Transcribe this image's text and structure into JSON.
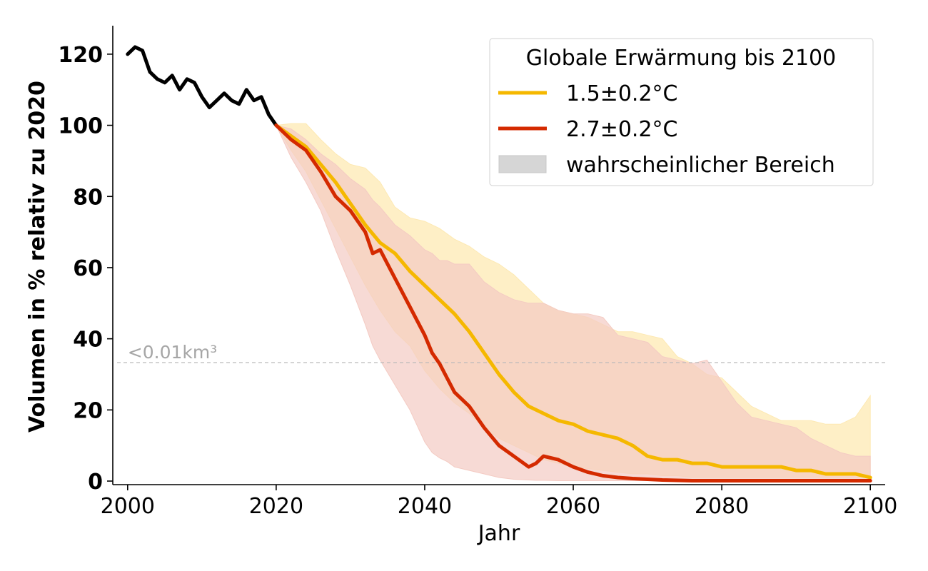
{
  "chart_data": {
    "type": "line",
    "xlabel": "Jahr",
    "ylabel": "Volumen in % relativ zu 2020",
    "xlim": [
      1998,
      2102
    ],
    "ylim": [
      -1,
      128
    ],
    "x_ticks": [
      2000,
      2020,
      2040,
      2060,
      2080,
      2100
    ],
    "y_ticks": [
      0,
      20,
      40,
      60,
      80,
      100,
      120
    ],
    "grid": false,
    "legend": {
      "title": "Globale Erwärmung bis 2100",
      "placement": "top-right",
      "entries": [
        {
          "label": "1.5±0.2°C",
          "color": "#f5b800",
          "kind": "line"
        },
        {
          "label": "2.7±0.2°C",
          "color": "#d42a00",
          "kind": "line"
        },
        {
          "label": "wahrscheinlicher Bereich",
          "color": "#d6d6d6",
          "kind": "patch"
        }
      ]
    },
    "threshold": {
      "y": 33.3,
      "label": "<0.01km³",
      "color": "#bbbbbb"
    },
    "historical": {
      "color": "#000000",
      "x": [
        2000,
        2001,
        2002,
        2003,
        2004,
        2005,
        2006,
        2007,
        2008,
        2009,
        2010,
        2011,
        2012,
        2013,
        2014,
        2015,
        2016,
        2017,
        2018,
        2019,
        2020
      ],
      "y": [
        120,
        122,
        121,
        115,
        113,
        112,
        114,
        110,
        113,
        112,
        108,
        105,
        107,
        109,
        107,
        106,
        110,
        107,
        108,
        103,
        100
      ]
    },
    "series": [
      {
        "name": "1.5±0.2°C",
        "color": "#f5b800",
        "band_color": "#fde9b3",
        "x": [
          2020,
          2022,
          2024,
          2026,
          2028,
          2030,
          2032,
          2034,
          2036,
          2038,
          2040,
          2042,
          2044,
          2046,
          2048,
          2050,
          2052,
          2054,
          2056,
          2058,
          2060,
          2062,
          2064,
          2066,
          2068,
          2070,
          2072,
          2074,
          2076,
          2078,
          2080,
          2082,
          2084,
          2086,
          2088,
          2090,
          2092,
          2094,
          2096,
          2098,
          2100
        ],
        "y": [
          100,
          97,
          94,
          89,
          84,
          78,
          72,
          67,
          64,
          59,
          55,
          51,
          47,
          42,
          36,
          30,
          25,
          21,
          19,
          17,
          16,
          14,
          13,
          12,
          10,
          7,
          6,
          6,
          5,
          5,
          4,
          4,
          4,
          4,
          4,
          3,
          3,
          2,
          2,
          2,
          1
        ],
        "low": [
          100,
          93,
          87,
          79,
          71,
          63,
          55,
          48,
          42,
          38,
          31,
          26,
          22,
          19,
          15,
          12,
          10,
          8,
          6,
          5,
          4,
          3.5,
          3,
          2.5,
          2,
          2,
          1.5,
          1.5,
          1,
          1,
          1,
          1,
          1,
          1,
          1,
          1,
          1,
          1,
          1,
          1,
          1
        ],
        "high": [
          100,
          100.5,
          100.5,
          96,
          92,
          89,
          88,
          84,
          77,
          74,
          73,
          71,
          68,
          66,
          63,
          61,
          58,
          54,
          50,
          48,
          47,
          46,
          44,
          42,
          42,
          41,
          40,
          35,
          33,
          30,
          29,
          25,
          21,
          19,
          17,
          17,
          17,
          16,
          16,
          18,
          24
        ]
      },
      {
        "name": "2.7±0.2°C",
        "color": "#d42a00",
        "band_color": "#f4cbc3",
        "x": [
          2020,
          2022,
          2024,
          2026,
          2028,
          2030,
          2032,
          2033,
          2034,
          2036,
          2038,
          2040,
          2041,
          2042,
          2043,
          2044,
          2046,
          2048,
          2050,
          2052,
          2054,
          2055,
          2056,
          2058,
          2060,
          2062,
          2064,
          2066,
          2068,
          2070,
          2072,
          2074,
          2076,
          2078,
          2080,
          2082,
          2084,
          2086,
          2088,
          2090,
          2092,
          2094,
          2096,
          2098,
          2100
        ],
        "y": [
          100,
          96,
          93,
          87,
          80,
          76,
          70,
          64,
          65,
          57,
          49,
          41,
          36,
          33,
          29,
          25,
          21,
          15,
          10,
          7,
          4,
          5,
          7,
          6,
          4,
          2.5,
          1.5,
          1,
          0.7,
          0.5,
          0.3,
          0.2,
          0.1,
          0.1,
          0.1,
          0.1,
          0.1,
          0.1,
          0.1,
          0.1,
          0.1,
          0.1,
          0.1,
          0.1,
          0.1
        ],
        "low": [
          100,
          91,
          84,
          76,
          65,
          55,
          44,
          38,
          34,
          27,
          20,
          11,
          8,
          6.5,
          5.5,
          4,
          3,
          2,
          1,
          0.5,
          0.3,
          0.2,
          0.2,
          0.1,
          0.1,
          0.1,
          0.1,
          0.1,
          0.1,
          0.1,
          0.1,
          0.1,
          0.1,
          0.1,
          0.1,
          0.1,
          0.1,
          0.1,
          0.1,
          0.1,
          0.1,
          0.1,
          0.1,
          0.1,
          0.1
        ],
        "high": [
          100,
          99,
          96,
          92,
          89,
          85,
          82,
          79,
          77,
          72,
          69,
          65,
          64,
          62,
          62,
          61,
          61,
          56,
          53,
          51,
          50,
          50,
          50,
          48,
          47,
          47,
          46,
          41,
          40,
          39,
          35,
          34,
          33,
          34,
          28,
          22,
          18,
          17,
          16,
          15,
          12,
          10,
          8,
          7,
          7
        ]
      }
    ]
  }
}
